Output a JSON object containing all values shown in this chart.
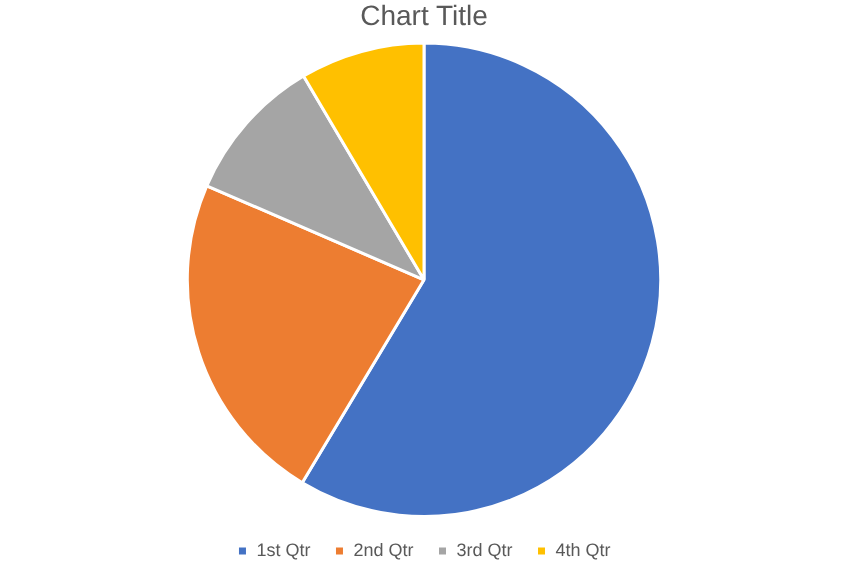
{
  "chart_data": {
    "type": "pie",
    "title": "Chart Title",
    "categories": [
      "1st Qtr",
      "2nd Qtr",
      "3rd Qtr",
      "4th Qtr"
    ],
    "values": [
      58.6,
      22.9,
      10,
      8.5
    ],
    "colors": [
      "#4472c4",
      "#ed7d31",
      "#a5a5a5",
      "#ffc000"
    ],
    "legend": "bottom"
  }
}
